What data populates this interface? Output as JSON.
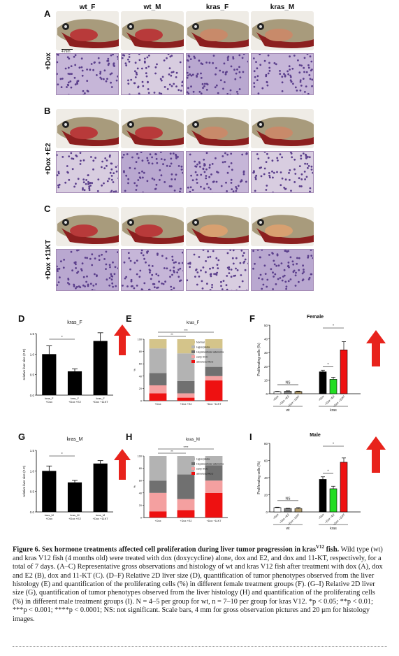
{
  "panel_letters": [
    "A",
    "B",
    "C",
    "D",
    "E",
    "F",
    "G",
    "H",
    "I"
  ],
  "column_headers": [
    "wt_F",
    "wt_M",
    "kras_F",
    "kras_M"
  ],
  "row_labels": [
    "+Dox",
    "+Dox +E2",
    "+Dox +11KT"
  ],
  "scale_bar_label": "4 mm",
  "colors": {
    "bar_black": "#000000",
    "bar_green": "#22dd22",
    "bar_red": "#ee1111",
    "bar_white": "#ffffff",
    "arrow_red": "#e8231c",
    "ns_bar_gray": "#7f7f7f",
    "ns_bar_tan": "#b09a6a"
  },
  "chart_data": [
    {
      "type": "bar",
      "panel": "D",
      "title": "kras_F",
      "ylabel": "relative liver size (2-D)",
      "ylim": [
        0,
        1.5
      ],
      "yticks": [
        "0.0",
        "0.5",
        "1.0",
        "1.5"
      ],
      "categories": [
        "kras_F\n+Dox",
        "kras_F\n+Dox +E2",
        "kras_F\n+Dox +11KT"
      ],
      "values": [
        1.0,
        0.58,
        1.32
      ],
      "errors": [
        0.2,
        0.06,
        0.2
      ],
      "significance": [
        {
          "from": 0,
          "to": 1,
          "label": "*"
        }
      ]
    },
    {
      "type": "bar",
      "panel": "E",
      "title": "kras_F",
      "stacked": true,
      "ylabel": "%",
      "ylim": [
        0,
        100
      ],
      "yticks": [
        "0",
        "20",
        "40",
        "60",
        "80",
        "100"
      ],
      "categories": [
        "+Dox",
        "+Dox +E2",
        "+Dox +11KT"
      ],
      "series": [
        {
          "name": "advanced HCC",
          "color": "#ee1111",
          "values": [
            12,
            5,
            33
          ]
        },
        {
          "name": "early HCC",
          "color": "#f4a0a0",
          "values": [
            13,
            7,
            7
          ]
        },
        {
          "name": "Hepatocellular adenoma",
          "color": "#707070",
          "values": [
            20,
            20,
            15
          ]
        },
        {
          "name": "Hyperplasia",
          "color": "#b3b3b3",
          "values": [
            40,
            45,
            30
          ]
        },
        {
          "name": "Normal",
          "color": "#d4c48a",
          "values": [
            15,
            23,
            15
          ]
        }
      ],
      "legend": [
        "Normal",
        "Hyperplasia",
        "Hepatocellular adenoma",
        "early HCC",
        "advanced HCC"
      ],
      "significance": [
        {
          "from": 0,
          "to": 1,
          "label": "**"
        },
        {
          "from": 0,
          "to": 2,
          "label": "***"
        }
      ]
    },
    {
      "type": "bar",
      "panel": "F",
      "title": "Female",
      "ylabel": "Proliferating cells (%)",
      "ylim": [
        0,
        50
      ],
      "yticks": [
        "0",
        "10",
        "20",
        "30",
        "40",
        "50"
      ],
      "categories": [
        "+Dox",
        "+Dox +E2",
        "+Dox +11KT",
        "+Dox",
        "+Dox +E2",
        "+Dox +11KT"
      ],
      "groups": [
        "wt",
        "kras"
      ],
      "values": [
        1.5,
        1.8,
        1.6,
        16,
        10.5,
        32
      ],
      "errors": [
        0.3,
        0.3,
        0.3,
        1.2,
        1.5,
        6
      ],
      "significance": [
        {
          "from": 0,
          "to": 2,
          "label": "NS"
        },
        {
          "from": 3,
          "to": 4,
          "label": "*"
        },
        {
          "from": 3,
          "to": 5,
          "label": "*"
        }
      ]
    },
    {
      "type": "bar",
      "panel": "G",
      "title": "kras_M",
      "ylabel": "relative liver size (2-D)",
      "ylim": [
        0,
        1.5
      ],
      "yticks": [
        "0.0",
        "0.5",
        "1.0",
        "1.5"
      ],
      "categories": [
        "kras_M\n+Dox",
        "kras_M\n+Dox +E2",
        "kras_M\n+Dox +11KT"
      ],
      "values": [
        1.0,
        0.72,
        1.18
      ],
      "errors": [
        0.12,
        0.05,
        0.07
      ],
      "significance": [
        {
          "from": 0,
          "to": 1,
          "label": "*"
        }
      ]
    },
    {
      "type": "bar",
      "panel": "H",
      "title": "kras_M",
      "stacked": true,
      "ylabel": "%",
      "ylim": [
        0,
        100
      ],
      "yticks": [
        "0",
        "20",
        "40",
        "60",
        "80",
        "100"
      ],
      "categories": [
        "+Dox",
        "+Dox +E2",
        "+Dox +11KT"
      ],
      "series": [
        {
          "name": "advanced HCC",
          "color": "#ee1111",
          "values": [
            10,
            12,
            40
          ]
        },
        {
          "name": "early HCC",
          "color": "#f4a0a0",
          "values": [
            30,
            18,
            20
          ]
        },
        {
          "name": "Hepatocellular adenoma",
          "color": "#707070",
          "values": [
            20,
            40,
            25
          ]
        },
        {
          "name": "Hyperplasia",
          "color": "#b3b3b3",
          "values": [
            40,
            30,
            15
          ]
        }
      ],
      "legend": [
        "Hyperplasia",
        "Hepatocellular adenoma",
        "early HCC",
        "advanced HCC"
      ],
      "significance": [
        {
          "from": 0,
          "to": 1,
          "label": "**"
        },
        {
          "from": 0,
          "to": 2,
          "label": "****"
        }
      ]
    },
    {
      "type": "bar",
      "panel": "I",
      "title": "Male",
      "ylabel": "Proliferating cells (%)",
      "ylim": [
        0,
        80
      ],
      "yticks": [
        "0",
        "20",
        "40",
        "60",
        "80"
      ],
      "categories": [
        "+Dox",
        "+Dox +E2",
        "+Dox +11KT",
        "+Dox",
        "+Dox +E2",
        "+Dox +11KT"
      ],
      "groups": [
        "wt",
        "kras"
      ],
      "values": [
        5,
        4,
        4,
        38,
        27,
        58
      ],
      "errors": [
        0.5,
        0.5,
        1,
        3,
        3,
        5
      ],
      "significance": [
        {
          "from": 0,
          "to": 2,
          "label": "NS"
        },
        {
          "from": 3,
          "to": 4,
          "label": "*"
        },
        {
          "from": 3,
          "to": 5,
          "label": "*"
        }
      ]
    }
  ],
  "caption": {
    "title": "Figure 6.  Sex hormone treatments affected cell proliferation during liver tumor progression in kras",
    "title_sup": "V12",
    "title_end": " fish.",
    "body": "Wild type (wt) and kras V12 fish (4 months old) were treated with dox (doxycycline) alone, dox and E2, and dox and 11-KT, respectively, for a total of 7 days. (A–C) Representative gross observations and histology of wt and kras V12 fish after treatment with dox (A), dox and E2 (B), dox and 11-KT (C). (D–F) Relative 2D liver size (D), quantification of tumor phenotypes observed from the liver histology (E) and quantification of the proliferating cells (%) in different female treatment groups (F). (G–I) Relative 2D liver size (G), quantification of tumor phenotypes observed from the liver histology (H) and quantification of the proliferating cells (%) in different male treatment groups (I). N = 4–5 per group for wt, n = 7–10 per group for kras V12. *p < 0.05; **p < 0.01; ***p < 0.001; ****p < 0.0001; NS: not significant. Scale bars, 4 mm for gross observation pictures and 20 μm for histology images."
  }
}
